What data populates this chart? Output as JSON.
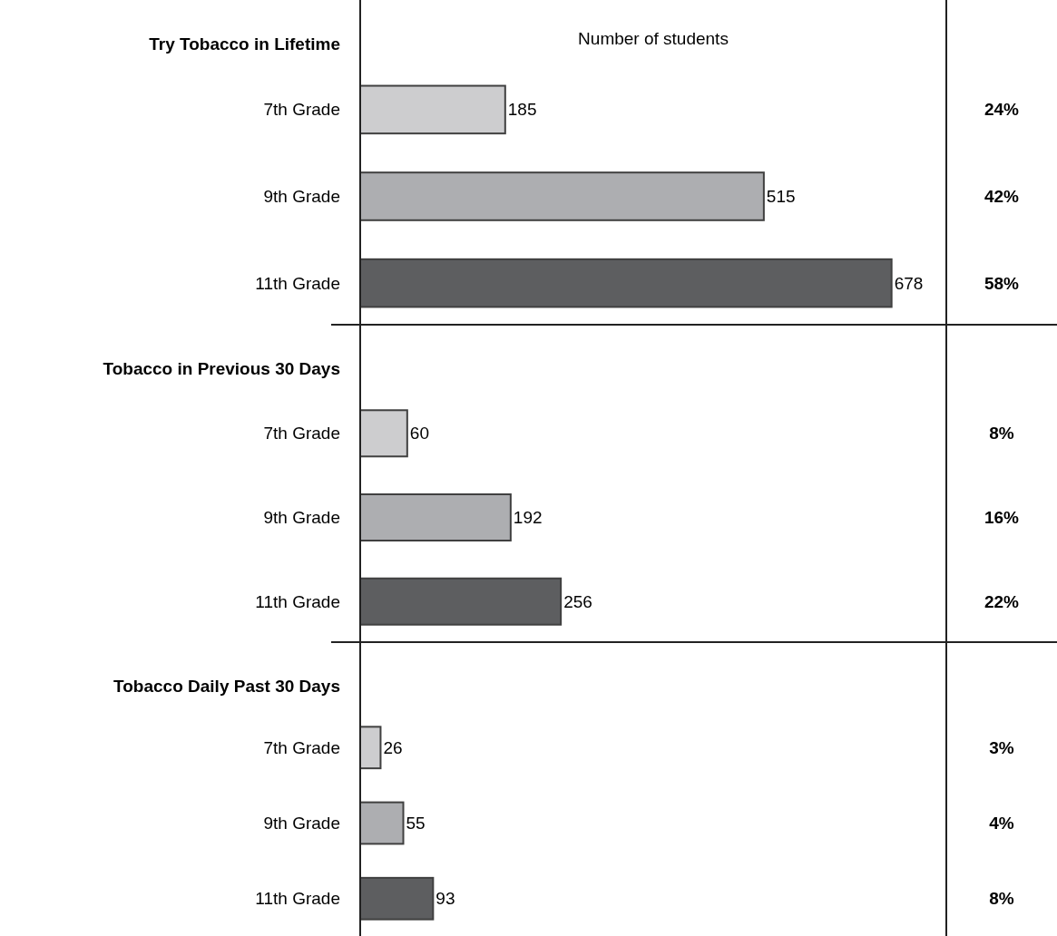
{
  "chart_data": [
    {
      "type": "bar",
      "orientation": "horizontal",
      "title": "Try Tobacco in Lifetime",
      "xlabel": "Number of students",
      "categories": [
        "7th Grade",
        "9th Grade",
        "11th Grade"
      ],
      "values": [
        185,
        515,
        678
      ],
      "colors": [
        "#cdcdcf",
        "#adaeb1",
        "#5d5e60"
      ],
      "data_labels": true,
      "tick_labels": "y",
      "annotations": [
        "24%",
        "42%",
        "58%"
      ]
    },
    {
      "type": "bar",
      "orientation": "horizontal",
      "title": "Tobacco in Previous 30 Days",
      "categories": [
        "7th Grade",
        "9th Grade",
        "11th Grade"
      ],
      "values": [
        60,
        192,
        256
      ],
      "colors": [
        "#cdcdcf",
        "#adaeb1",
        "#5d5e60"
      ],
      "data_labels": true,
      "tick_labels": "y",
      "annotations": [
        "8%",
        "16%",
        "22%"
      ]
    },
    {
      "type": "bar",
      "orientation": "horizontal",
      "title": "Tobacco Daily Past 30 Days",
      "categories": [
        "7th Grade",
        "9th Grade",
        "11th Grade"
      ],
      "values": [
        26,
        55,
        93
      ],
      "colors": [
        "#cdcdcf",
        "#adaeb1",
        "#5d5e60"
      ],
      "data_labels": true,
      "tick_labels": "y",
      "annotations": [
        "3%",
        "4%",
        "8%"
      ]
    }
  ]
}
